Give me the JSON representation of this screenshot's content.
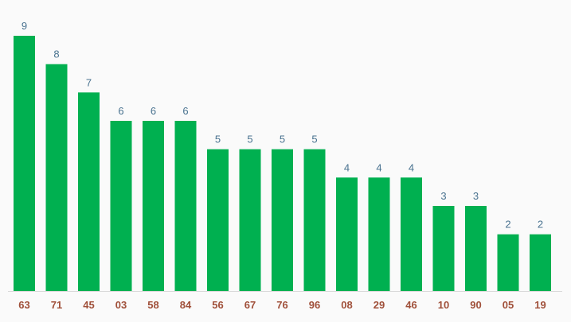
{
  "chart_data": {
    "type": "bar",
    "categories": [
      "63",
      "71",
      "45",
      "03",
      "58",
      "84",
      "56",
      "67",
      "76",
      "96",
      "08",
      "29",
      "46",
      "10",
      "90",
      "05",
      "19"
    ],
    "values": [
      9,
      8,
      7,
      6,
      6,
      6,
      5,
      5,
      5,
      5,
      4,
      4,
      4,
      3,
      3,
      2,
      2
    ],
    "title": "",
    "xlabel": "",
    "ylabel": "",
    "ylim": [
      0,
      9
    ],
    "grid": false,
    "legend": "none",
    "colors": {
      "bar": "#00b050",
      "value_label": "#4a7390",
      "category_label": "#a0503a",
      "axis": "#d9d9d9",
      "background": "#fafafa"
    }
  }
}
